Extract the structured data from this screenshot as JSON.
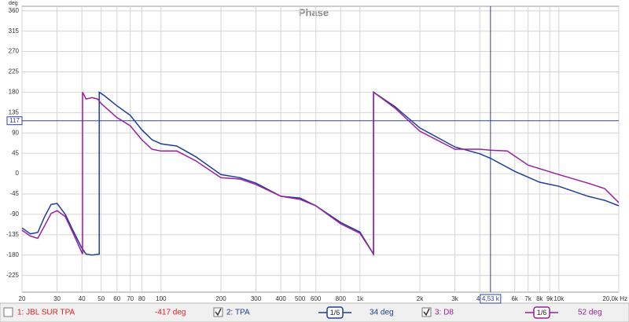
{
  "chart_data": {
    "type": "line",
    "title": "Phase",
    "ylabel": "deg",
    "xscale": "log",
    "xlim": [
      20,
      20000
    ],
    "ylim": [
      -262,
      370
    ],
    "xticks": [
      20,
      30,
      40,
      50,
      60,
      70,
      80,
      100,
      200,
      300,
      400,
      500,
      600,
      800,
      {
        "value": 1000,
        "label": "1k"
      },
      {
        "value": 2000,
        "label": "2k"
      },
      {
        "value": 3000,
        "label": "3k"
      },
      {
        "value": 4000,
        "label": "4k"
      },
      {
        "value": 6000,
        "label": "6k"
      },
      {
        "value": 7000,
        "label": "7k"
      },
      {
        "value": 8000,
        "label": "8k"
      },
      {
        "value": 9000,
        "label": "9k"
      },
      {
        "value": 10000,
        "label": "10k"
      },
      {
        "value": 20000,
        "label": "20,0k Hz"
      }
    ],
    "yticks": [
      360,
      315,
      270,
      225,
      180,
      135,
      90,
      45,
      0,
      -45,
      -90,
      -135,
      -180,
      -225
    ],
    "grid": true,
    "cursor": {
      "x": {
        "value": 4530,
        "label": "4,53 k"
      },
      "y": 117
    },
    "series": [
      {
        "name": "2: TPA",
        "color": "#1c3d9a",
        "readout": "34 deg",
        "smoothing": "1/6",
        "checked": true,
        "x": [
          20,
          22,
          24,
          26,
          28,
          30,
          33,
          36,
          40,
          42,
          45,
          48.9,
          48.9,
          52,
          60,
          70,
          80,
          90,
          100,
          120,
          150,
          200,
          250,
          300,
          400,
          500,
          600,
          800,
          1000,
          1170,
          1170,
          1500,
          2000,
          3000,
          4000,
          4530,
          6000,
          8000,
          10000,
          14000,
          17000,
          20000
        ],
        "values": [
          -120,
          -133,
          -130,
          -95,
          -68,
          -66,
          -90,
          -125,
          -165,
          -178,
          -180,
          -178,
          180,
          172,
          150,
          129,
          97,
          75,
          66,
          61,
          37,
          -2,
          -9,
          -21,
          -50,
          -54,
          -71,
          -108,
          -129,
          -178,
          180,
          148,
          101,
          59,
          44,
          34,
          5,
          -19,
          -28,
          -50,
          -59,
          -71
        ]
      },
      {
        "name": "3: D8",
        "color": "#9c1fa0",
        "readout": "52 deg",
        "smoothing": "1/6",
        "checked": true,
        "x": [
          20,
          22,
          24,
          26,
          28,
          30,
          33,
          36,
          40.3,
          40.3,
          42,
          45,
          48,
          50,
          60,
          70,
          80,
          90,
          100,
          120,
          150,
          200,
          250,
          300,
          400,
          500,
          600,
          800,
          1000,
          1170,
          1170,
          1500,
          2000,
          3000,
          4000,
          4530,
          5500,
          7000,
          10000,
          14000,
          17000,
          20000
        ],
        "values": [
          -125,
          -138,
          -143,
          -115,
          -88,
          -82,
          -95,
          -130,
          -178,
          180,
          165,
          168,
          165,
          155,
          124,
          106,
          75,
          54,
          50,
          50,
          28,
          -9,
          -12,
          -24,
          -50,
          -57,
          -71,
          -111,
          -132,
          -178,
          180,
          145,
          94,
          54,
          54,
          52,
          50,
          19,
          -2,
          -21,
          -33,
          -64
        ]
      }
    ]
  },
  "hidden_trace": {
    "name": "1: JBL SUR TPA",
    "readout": "-417 deg",
    "color": "#e02020",
    "checked": false
  }
}
